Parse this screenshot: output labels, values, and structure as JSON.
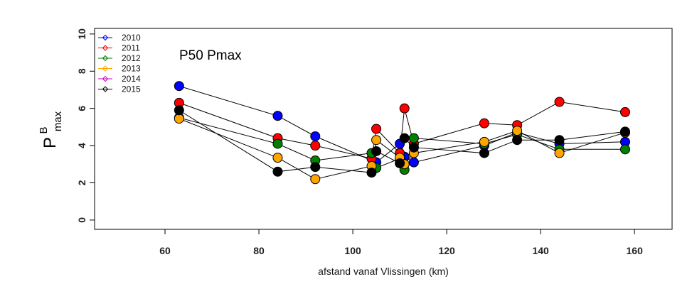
{
  "chart_data": {
    "type": "scatter",
    "title": "",
    "annotation": "P50 Pmax",
    "xlabel": "afstand vanaf Vlissingen (km)",
    "ylabel": {
      "main": "P",
      "superscript": "B",
      "subscript": "max"
    },
    "xlim": [
      45,
      168
    ],
    "ylim": [
      -0.5,
      10.3
    ],
    "xticks": [
      60,
      80,
      100,
      120,
      140,
      160
    ],
    "yticks": [
      0,
      2,
      4,
      6,
      8,
      10
    ],
    "grid": false,
    "legend_position": "top-left",
    "series": [
      {
        "name": "2010",
        "color": "#0000ff",
        "points": [
          [
            63,
            7.2
          ],
          [
            84,
            5.6
          ],
          [
            92,
            4.5
          ],
          [
            105,
            3.1
          ],
          [
            110,
            4.1
          ],
          [
            111,
            3.4
          ],
          [
            113,
            3.1
          ],
          [
            128,
            4.0
          ],
          [
            135,
            4.7
          ],
          [
            144,
            4.1
          ],
          [
            158,
            4.2
          ]
        ]
      },
      {
        "name": "2011",
        "color": "#ff0000",
        "points": [
          [
            63,
            6.3
          ],
          [
            84,
            4.4
          ],
          [
            92,
            4.0
          ],
          [
            104,
            3.3
          ],
          [
            105,
            4.9
          ],
          [
            110,
            3.6
          ],
          [
            111,
            6.0
          ],
          [
            113,
            4.1
          ],
          [
            128,
            5.2
          ],
          [
            135,
            5.1
          ],
          [
            144,
            6.35
          ],
          [
            158,
            5.8
          ]
        ]
      },
      {
        "name": "2012",
        "color": "#008000",
        "points": [
          [
            63,
            5.5
          ],
          [
            84,
            4.1
          ],
          [
            92,
            3.2
          ],
          [
            104,
            3.6
          ],
          [
            105,
            2.8
          ],
          [
            110,
            3.3
          ],
          [
            111,
            2.7
          ],
          [
            113,
            4.4
          ],
          [
            128,
            4.1
          ],
          [
            135,
            4.6
          ],
          [
            144,
            3.8
          ],
          [
            158,
            3.8
          ]
        ]
      },
      {
        "name": "2013",
        "color": "#ffa500",
        "points": [
          [
            63,
            5.45
          ],
          [
            84,
            3.35
          ],
          [
            92,
            2.2
          ],
          [
            104,
            2.9
          ],
          [
            105,
            4.3
          ],
          [
            110,
            3.35
          ],
          [
            111,
            3.0
          ],
          [
            113,
            3.6
          ],
          [
            128,
            4.2
          ],
          [
            135,
            4.8
          ],
          [
            144,
            3.6
          ],
          [
            158,
            4.7
          ]
        ]
      },
      {
        "name": "2014",
        "color": "#cc00cc",
        "points": []
      },
      {
        "name": "2015",
        "color": "#000000",
        "points": [
          [
            63,
            5.9
          ],
          [
            84,
            2.6
          ],
          [
            92,
            2.85
          ],
          [
            104,
            2.55
          ],
          [
            105,
            3.7
          ],
          [
            110,
            3.05
          ],
          [
            111,
            4.4
          ],
          [
            113,
            3.9
          ],
          [
            128,
            3.6
          ],
          [
            135,
            4.3
          ],
          [
            144,
            4.3
          ],
          [
            158,
            4.75
          ]
        ]
      }
    ]
  }
}
